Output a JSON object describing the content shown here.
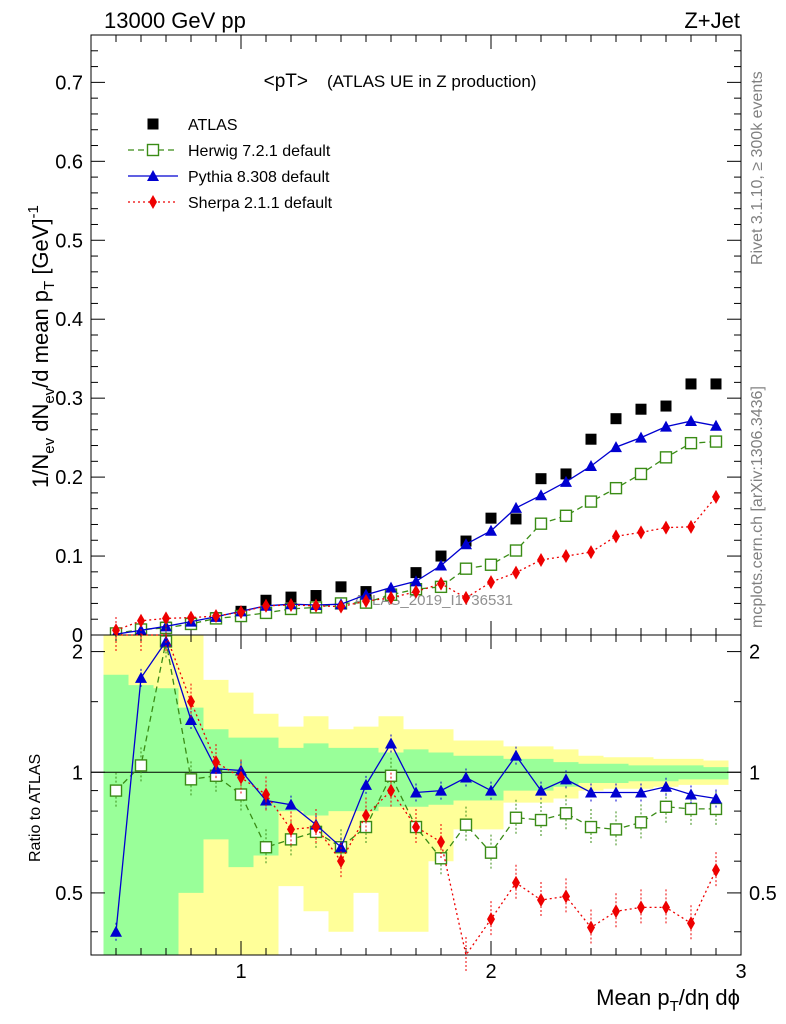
{
  "header": {
    "left": "13000 GeV pp",
    "right": "Z+Jet"
  },
  "side_text": {
    "rivet": "Rivet 3.1.10, ≥ 300k events",
    "mcplots": "mcplots.cern.ch [arXiv:1306.3436]"
  },
  "watermark": "ATLAS_2019_I1736531",
  "chart_data": {
    "type": "scatter",
    "title": "<pT>",
    "subtitle": "(ATLAS UE in Z production)",
    "xlabel": "Mean p_T/dη dϕ",
    "ylabel": "1/N_ev dN_ev/d mean p_T [GeV]^-1",
    "ratio_ylabel": "Ratio to ATLAS",
    "xlim": [
      0.4,
      3.0
    ],
    "ylim": [
      0,
      0.76
    ],
    "ratio_ylim": [
      0.35,
      2.2
    ],
    "x_ticks": [
      "1",
      "2",
      "3"
    ],
    "y_ticks": [
      "0",
      "0.1",
      "0.2",
      "0.3",
      "0.4",
      "0.5",
      "0.6",
      "0.7"
    ],
    "ratio_ticks": [
      "0.5",
      "1",
      "2"
    ],
    "legend_position": "top-left",
    "colors": {
      "atlas": "#000000",
      "herwig": "#3a8c16",
      "pythia": "#0000d0",
      "sherpa": "#ee0000",
      "band_inner": "#99ff99",
      "band_outer": "#ffff99"
    },
    "x": [
      0.5,
      0.6,
      0.7,
      0.8,
      0.9,
      1.0,
      1.1,
      1.2,
      1.3,
      1.4,
      1.5,
      1.6,
      1.7,
      1.8,
      1.9,
      2.0,
      2.1,
      2.2,
      2.3,
      2.4,
      2.5,
      2.6,
      2.7,
      2.8,
      2.9
    ],
    "series": [
      {
        "name": "ATLAS",
        "key": "atlas",
        "values": [
          0.002,
          0.007,
          0.01,
          0.015,
          0.022,
          0.03,
          0.044,
          0.048,
          0.05,
          0.061,
          0.055,
          0.052,
          0.079,
          0.1,
          0.119,
          0.148,
          0.147,
          0.198,
          0.204,
          0.248,
          0.274,
          0.286,
          0.29,
          0.318,
          0.318
        ]
      },
      {
        "name": "Herwig 7.2.1 default",
        "key": "herwig",
        "values": [
          0.002,
          0.007,
          0.009,
          0.014,
          0.021,
          0.024,
          0.028,
          0.033,
          0.035,
          0.04,
          0.041,
          0.051,
          0.058,
          0.061,
          0.084,
          0.089,
          0.107,
          0.141,
          0.151,
          0.169,
          0.186,
          0.204,
          0.225,
          0.243,
          0.245
        ]
      },
      {
        "name": "Pythia 8.308 default",
        "key": "pythia",
        "values": [
          0.001,
          0.006,
          0.011,
          0.017,
          0.023,
          0.03,
          0.037,
          0.039,
          0.038,
          0.039,
          0.051,
          0.06,
          0.068,
          0.088,
          0.115,
          0.132,
          0.161,
          0.177,
          0.194,
          0.214,
          0.238,
          0.25,
          0.264,
          0.271,
          0.265
        ]
      },
      {
        "name": "Sherpa 2.1.1 default",
        "key": "sherpa",
        "values": [
          0.006,
          0.018,
          0.021,
          0.022,
          0.024,
          0.029,
          0.037,
          0.038,
          0.037,
          0.036,
          0.043,
          0.047,
          0.055,
          0.065,
          0.047,
          0.067,
          0.079,
          0.095,
          0.1,
          0.105,
          0.125,
          0.13,
          0.136,
          0.137,
          0.175
        ]
      }
    ],
    "ratios": {
      "herwig": [
        0.9,
        1.04,
        2.12,
        0.96,
        0.98,
        0.88,
        0.65,
        0.68,
        0.71,
        0.65,
        0.73,
        0.98,
        0.73,
        0.61,
        0.74,
        0.63,
        0.77,
        0.76,
        0.79,
        0.73,
        0.72,
        0.75,
        0.82,
        0.81,
        0.81
      ],
      "pythia": [
        0.4,
        1.72,
        2.12,
        1.35,
        1.02,
        1.01,
        0.85,
        0.83,
        0.74,
        0.65,
        0.93,
        1.18,
        0.89,
        0.9,
        0.97,
        0.9,
        1.1,
        0.9,
        0.96,
        0.89,
        0.89,
        0.89,
        0.92,
        0.88,
        0.86
      ],
      "sherpa": [
        2.2,
        2.2,
        2.2,
        1.5,
        1.06,
        0.97,
        0.88,
        0.72,
        0.73,
        0.6,
        0.78,
        0.9,
        0.73,
        0.67,
        0.35,
        0.43,
        0.53,
        0.48,
        0.49,
        0.41,
        0.45,
        0.46,
        0.46,
        0.42,
        0.57
      ]
    },
    "uncertainty_band": {
      "x_edges": [
        0.45,
        0.55,
        0.65,
        0.75,
        0.85,
        0.95,
        1.05,
        1.15,
        1.25,
        1.35,
        1.45,
        1.55,
        1.65,
        1.75,
        1.85,
        1.95,
        2.05,
        2.15,
        2.25,
        2.35,
        2.45,
        2.55,
        2.65,
        2.75,
        2.85,
        2.95
      ],
      "inner_lo": [
        0.35,
        0.35,
        0.35,
        0.5,
        0.68,
        0.58,
        0.62,
        0.8,
        0.78,
        0.8,
        0.8,
        0.82,
        0.82,
        0.83,
        0.85,
        0.85,
        0.9,
        0.9,
        0.92,
        0.94,
        0.94,
        0.95,
        0.95,
        0.96,
        0.96
      ],
      "inner_hi": [
        1.75,
        1.65,
        1.62,
        1.45,
        1.28,
        1.22,
        1.22,
        1.15,
        1.18,
        1.15,
        1.15,
        1.12,
        1.14,
        1.12,
        1.1,
        1.1,
        1.08,
        1.08,
        1.06,
        1.05,
        1.05,
        1.04,
        1.04,
        1.04,
        1.03
      ],
      "outer_lo": [
        0.35,
        0.35,
        0.35,
        0.35,
        0.35,
        0.35,
        0.35,
        0.52,
        0.45,
        0.4,
        0.5,
        0.4,
        0.4,
        0.6,
        0.72,
        0.72,
        0.84,
        0.84,
        0.86,
        0.9,
        0.91,
        0.91,
        0.92,
        0.93,
        0.93
      ],
      "outer_hi": [
        2.2,
        2.2,
        2.2,
        2.2,
        1.7,
        1.58,
        1.4,
        1.3,
        1.38,
        1.28,
        1.3,
        1.38,
        1.28,
        1.28,
        1.2,
        1.2,
        1.16,
        1.16,
        1.14,
        1.1,
        1.09,
        1.09,
        1.08,
        1.08,
        1.07
      ]
    }
  }
}
